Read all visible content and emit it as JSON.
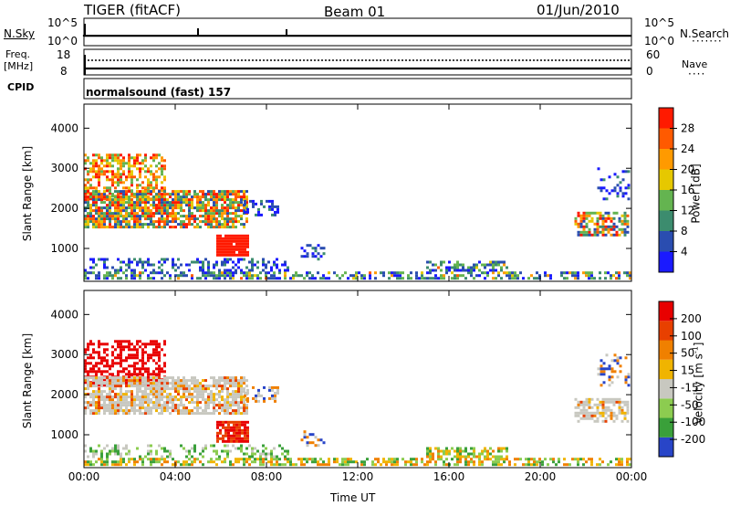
{
  "header": {
    "radar": "TIGER (fitACF)",
    "beam": "Beam 01",
    "date": "01/Jun/2010"
  },
  "summary": {
    "nsky_label": "N.Sky",
    "nsearch_label": "N.Search",
    "nsky_ticks": [
      "10^5",
      "10^0"
    ],
    "nsearch_ticks": [
      "10^5",
      "10^0"
    ],
    "freq_label_1": "Freq.",
    "freq_label_2": "[MHz]",
    "freq_ticks": [
      "18",
      "8"
    ],
    "nave_ticks": [
      "60",
      "0"
    ],
    "nave_label": "Nave",
    "cpid_label": "CPID",
    "cpid_text": "normalsound (fast) 157"
  },
  "colors": {
    "power_scale": [
      "#1a1aff",
      "#2a4db0",
      "#3c8c6e",
      "#64b450",
      "#e6c800",
      "#ff9a00",
      "#ff5a00",
      "#ff1a00"
    ],
    "velocity_scale": [
      "#2845c8",
      "#3aa03a",
      "#8ccc50",
      "#c8c8c0",
      "#f0b400",
      "#f08000",
      "#e84000",
      "#e80000"
    ]
  },
  "chart_data": [
    {
      "type": "heatmap",
      "title": "Power",
      "ylabel": "Slant Range [km]",
      "xlabel": "Time UT",
      "colorbar_label": "Power [dB]",
      "colorbar_ticks": [
        "28",
        "24",
        "20",
        "16",
        "12",
        "8",
        "4"
      ],
      "yticks": [
        "4000",
        "3000",
        "2000",
        "1000"
      ],
      "xticks": [
        "00:00",
        "04:00",
        "08:00",
        "12:00",
        "16:00",
        "20:00",
        "00:00"
      ],
      "xlim_hours": [
        0,
        24
      ],
      "ylim_km": [
        180,
        4600
      ],
      "clim_db": [
        0,
        32
      ]
    },
    {
      "type": "heatmap",
      "title": "Velocity",
      "ylabel": "Slant Range [km]",
      "xlabel": "Time UT",
      "colorbar_label": "Velocity [m s",
      "colorbar_label_sup": "-1",
      "colorbar_label_end": "]",
      "colorbar_ticks": [
        "200",
        "100",
        "50",
        "15",
        "-15",
        "-50",
        "-100",
        "-200"
      ],
      "yticks": [
        "4000",
        "3000",
        "2000",
        "1000"
      ],
      "xticks": [
        "00:00",
        "04:00",
        "08:00",
        "12:00",
        "16:00",
        "20:00",
        "00:00"
      ],
      "xlim_hours": [
        0,
        24
      ],
      "ylim_km": [
        180,
        4600
      ]
    }
  ]
}
